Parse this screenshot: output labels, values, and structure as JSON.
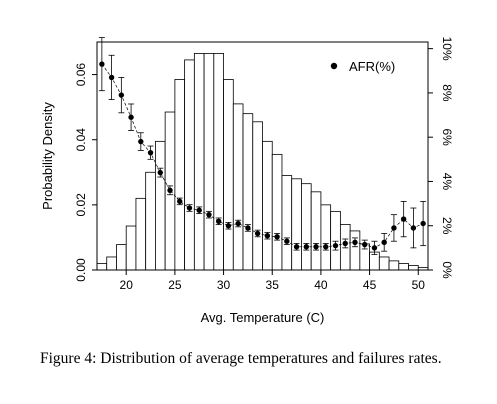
{
  "caption": "Figure 4:  Distribution of average temperatures and failures rates.",
  "chart_data": {
    "type": "bar",
    "title": "",
    "xlabel": "Avg. Temperature (C)",
    "ylabel": "Probability Density",
    "y2label": "",
    "xlim": [
      17,
      51
    ],
    "ylim": [
      0,
      0.07
    ],
    "y2lim": [
      0,
      0.103
    ],
    "x_ticks": [
      20,
      25,
      30,
      35,
      40,
      45,
      50
    ],
    "y_ticks": [
      0.0,
      0.02,
      0.04,
      0.06
    ],
    "y_tick_labels": [
      "0.00",
      "0.02",
      "0.04",
      "0.06"
    ],
    "y2_ticks": [
      0,
      0.02,
      0.04,
      0.06,
      0.08,
      0.1
    ],
    "y2_tick_labels": [
      "0%",
      "2%",
      "4%",
      "6%",
      "8%",
      "10%"
    ],
    "legend": {
      "label": "AFR(%)",
      "position": "top-right"
    },
    "histogram": {
      "bin_width": 1,
      "bin_starts": [
        17,
        18,
        19,
        20,
        21,
        22,
        23,
        24,
        25,
        26,
        27,
        28,
        29,
        30,
        31,
        32,
        33,
        34,
        35,
        36,
        37,
        38,
        39,
        40,
        41,
        42,
        43,
        44,
        45,
        46,
        47,
        48,
        49,
        50
      ],
      "density": [
        0.002,
        0.004,
        0.0078,
        0.0135,
        0.022,
        0.03,
        0.0395,
        0.0485,
        0.0585,
        0.0645,
        0.0665,
        0.0665,
        0.0665,
        0.0585,
        0.051,
        0.048,
        0.0455,
        0.0395,
        0.0355,
        0.029,
        0.028,
        0.0265,
        0.024,
        0.02,
        0.018,
        0.014,
        0.012,
        0.008,
        0.0055,
        0.004,
        0.0028,
        0.002,
        0.0014,
        0.0008
      ]
    },
    "series": [
      {
        "name": "AFR(%)",
        "axis": "right",
        "x": [
          17.5,
          18.5,
          19.5,
          20.5,
          21.5,
          22.5,
          23.5,
          24.5,
          25.5,
          26.5,
          27.5,
          28.5,
          29.5,
          30.5,
          31.5,
          32.5,
          33.5,
          34.5,
          35.5,
          36.5,
          37.5,
          38.5,
          39.5,
          40.5,
          41.5,
          42.5,
          43.5,
          44.5,
          45.5,
          46.5,
          47.5,
          48.5,
          49.5,
          50.5
        ],
        "y": [
          0.093,
          0.087,
          0.079,
          0.069,
          0.058,
          0.053,
          0.044,
          0.036,
          0.031,
          0.028,
          0.027,
          0.025,
          0.022,
          0.02,
          0.021,
          0.019,
          0.0165,
          0.0155,
          0.015,
          0.013,
          0.0105,
          0.0105,
          0.0105,
          0.0105,
          0.011,
          0.012,
          0.0125,
          0.0115,
          0.01,
          0.0125,
          0.019,
          0.023,
          0.019,
          0.021
        ],
        "err": [
          0.012,
          0.01,
          0.008,
          0.006,
          0.004,
          0.003,
          0.002,
          0.002,
          0.0015,
          0.0015,
          0.0015,
          0.0015,
          0.0015,
          0.0015,
          0.0015,
          0.0015,
          0.0015,
          0.0015,
          0.0015,
          0.0015,
          0.0015,
          0.0015,
          0.0015,
          0.0015,
          0.002,
          0.002,
          0.002,
          0.002,
          0.003,
          0.004,
          0.006,
          0.008,
          0.009,
          0.01
        ]
      }
    ]
  }
}
